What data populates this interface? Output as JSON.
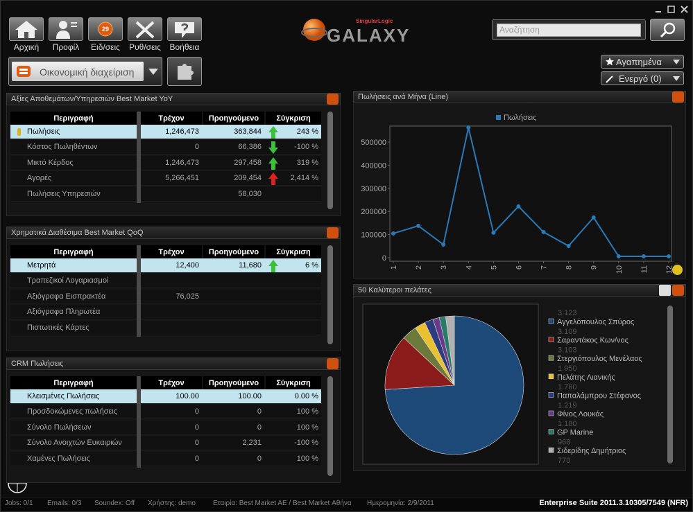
{
  "toolbar": {
    "buttons": [
      "Αρχική",
      "Προφίλ",
      "Ειδ/σεις",
      "Ρυθ/σεις",
      "Βοήθεια"
    ],
    "badge": "29"
  },
  "module": "Οικονομική διαχείριση",
  "logo": {
    "brand": "SingularLogic",
    "name": "GALAXY"
  },
  "search": {
    "placeholder": "Αναζήτηση"
  },
  "favorites": "Αγαπημένα",
  "active": "Ενεργό (0)",
  "panels": [
    {
      "title": "Αξίες Αποθεμάτων/Υπηρεσιών Best Market YoY",
      "columns": [
        "Περιγραφή",
        "Τρέχον",
        "Προηγούμενο",
        "Σύγκριση"
      ],
      "rows": [
        [
          "Πωλήσεις",
          "1,246,473",
          "363,844",
          "243 %"
        ],
        [
          "Κόστος Πωληθέντων",
          "0",
          "66,386",
          "-100 %"
        ],
        [
          "Μικτό Κέρδος",
          "1,246,473",
          "297,458",
          "319 %"
        ],
        [
          "Αγορές",
          "5,266,451",
          "209,454",
          "2,414 %"
        ],
        [
          "Πωλήσεις Υπηρεσιών",
          null,
          "58,030",
          null
        ]
      ]
    },
    {
      "title": "Χρηματικά Διαθέσιμα Best Market QoQ",
      "columns": [
        "Περιγραφή",
        "Τρέχον",
        "Προηγούμενο",
        "Σύγκριση"
      ],
      "rows": [
        [
          "Μετρητά",
          "12,400",
          "11,680",
          "6 %"
        ],
        [
          "Τραπεζικοί Λογαριασμοί",
          null,
          null,
          null
        ],
        [
          "Αξιόγραφα Εισπρακτέα",
          "76,025",
          null,
          null
        ],
        [
          "Αξιόγραφα Πληρωτέα",
          null,
          null,
          null
        ],
        [
          "Πιστωτικές Κάρτες",
          null,
          null,
          null
        ]
      ]
    },
    {
      "title": "CRM Πωλήσεις",
      "columns": [
        "Περιγραφή",
        "Τρέχον",
        "Προηγούμενο",
        "Σύγκριση"
      ],
      "rows": [
        [
          "Κλεισμένες Πωλήσεις",
          "100.00",
          "100.00",
          "0.00 %"
        ],
        [
          "Προσδοκώμενες πωλήσεις",
          "0",
          "0",
          "100 %"
        ],
        [
          "Σύνολο Πωλήσεων",
          "0",
          "0",
          "100 %"
        ],
        [
          "Σύνολο Ανοιχτών Ευκαιριών",
          "0",
          "2,231",
          "-100 %"
        ],
        [
          "Χαμένες Πωλήσεις",
          "0",
          "0",
          "100 %"
        ]
      ]
    }
  ],
  "chart_data": [
    {
      "type": "line",
      "title": "Πωλήσεις ανά Μήνα (Line)",
      "x": [
        1,
        2,
        3,
        4,
        5,
        6,
        7,
        8,
        9,
        10,
        11,
        12
      ],
      "xlim": [
        1,
        12
      ],
      "xticks": [
        1,
        2,
        3,
        4,
        5,
        6,
        7,
        8,
        9,
        10,
        11,
        12
      ],
      "ylim": [
        0,
        563000
      ],
      "yticks": [
        0,
        100000,
        200000,
        300000,
        400000,
        500000
      ],
      "grid": false,
      "legend": "top",
      "series": [
        {
          "name": "Πωλήσεις",
          "color": "#2a7ab8",
          "values": [
            105000,
            138000,
            57000,
            563000,
            108000,
            222000,
            111000,
            51000,
            174000,
            6000,
            6000,
            6000
          ]
        }
      ]
    },
    {
      "type": "pie",
      "title": "50 Καλύτεροι πελάτες",
      "categories": [
        "Αγγελόπουλος Σπύρος",
        "Σαραντάκος Κων/νος",
        "Στεργιόπουλος Μενέλαος",
        "Πελάτης Λιανικής",
        "Παπαλάμπρου Στέφανος",
        "Φίνος Λουκάς",
        "GP Marine",
        "Σιδερίδης Δημήτριος"
      ],
      "values": [
        74,
        13,
        3.5,
        2.5,
        2,
        1.5,
        1.5,
        2
      ],
      "colors": [
        "#1d4a78",
        "#8c1c1c",
        "#6b7a3a",
        "#e8c030",
        "#2c3c7c",
        "#6a3a8a",
        "#2a7a6a",
        "#b0b0b0"
      ],
      "amount_above": "3.123",
      "amounts": [
        "3.109",
        "3.103",
        "1.950",
        "1.780",
        "1.219",
        "1.180",
        "968",
        "770"
      ]
    }
  ],
  "status": [
    "Jobs: 0/1",
    "Emails: 0/3",
    "Soundex: Off",
    "Χρήστης: demo",
    "Εταιρία: Best Market AE / Best Market Αθήνα",
    "Ημερομηνία: 2/9/2011"
  ],
  "version": "Enterprise Suite  2011.3.10305/7549 (NFR)"
}
